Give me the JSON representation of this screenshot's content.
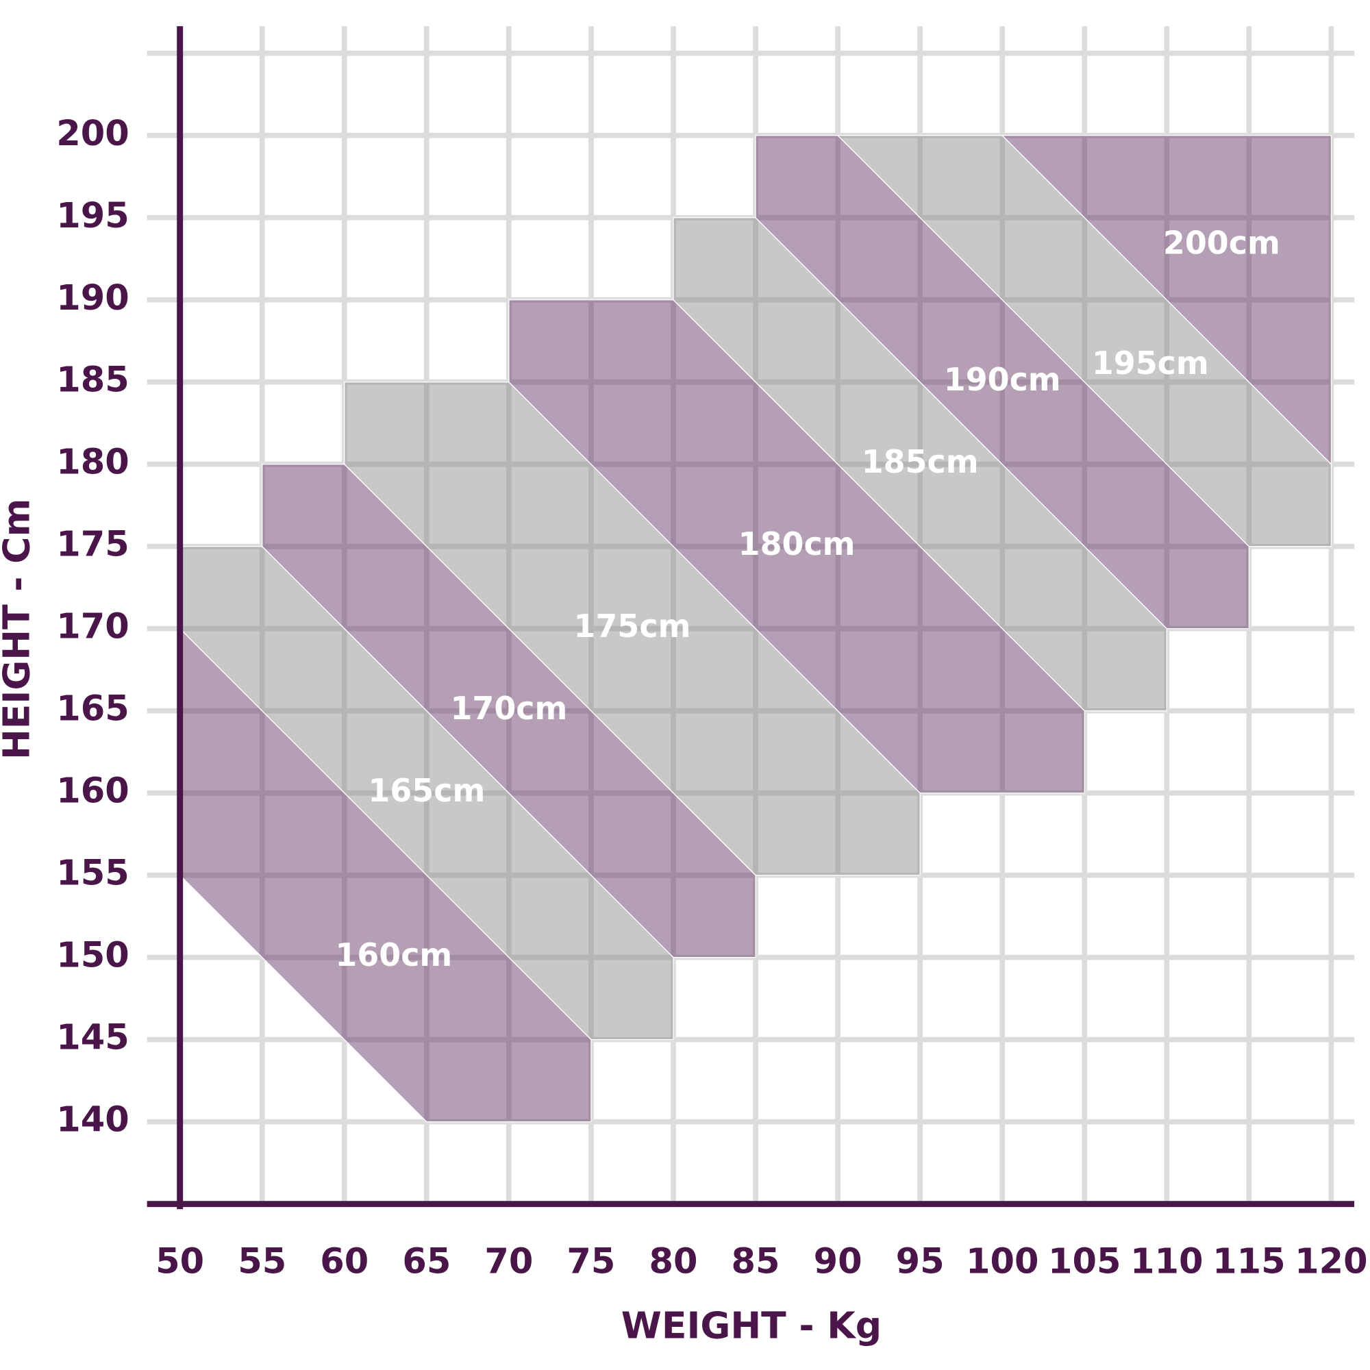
{
  "chart_data": {
    "type": "polygon",
    "x_label": "WEIGHT - Kg",
    "y_label": "HEIGHT - Cm",
    "xlim": [
      48,
      121.4
    ],
    "ylim": [
      135,
      205
    ],
    "xticks": [
      50,
      55,
      60,
      65,
      70,
      75,
      80,
      85,
      90,
      95,
      100,
      105,
      110,
      115,
      120
    ],
    "yticks": [
      140,
      145,
      150,
      155,
      160,
      165,
      170,
      175,
      180,
      185,
      190,
      195,
      200
    ],
    "grid": true,
    "bands": [
      {
        "name": "160cm",
        "color": "#5a2a58",
        "points": [
          [
            50,
            170
          ],
          [
            75,
            145
          ],
          [
            75,
            140
          ],
          [
            65,
            140
          ],
          [
            50,
            155
          ]
        ]
      },
      {
        "name": "165cm",
        "color": "#858585",
        "points": [
          [
            50,
            175
          ],
          [
            55,
            175
          ],
          [
            80,
            150
          ],
          [
            80,
            145
          ],
          [
            75,
            145
          ],
          [
            50,
            170
          ]
        ]
      },
      {
        "name": "170cm",
        "color": "#5a2a58",
        "points": [
          [
            55,
            180
          ],
          [
            60,
            180
          ],
          [
            85,
            155
          ],
          [
            85,
            150
          ],
          [
            80,
            150
          ],
          [
            55,
            175
          ]
        ]
      },
      {
        "name": "175cm",
        "color": "#858585",
        "points": [
          [
            60,
            185
          ],
          [
            70,
            185
          ],
          [
            95,
            160
          ],
          [
            95,
            155
          ],
          [
            85,
            155
          ],
          [
            60,
            180
          ]
        ]
      },
      {
        "name": "180cm",
        "color": "#5a2a58",
        "points": [
          [
            70,
            190
          ],
          [
            80,
            190
          ],
          [
            105,
            165
          ],
          [
            105,
            160
          ],
          [
            95,
            160
          ],
          [
            70,
            185
          ]
        ]
      },
      {
        "name": "185cm",
        "color": "#858585",
        "points": [
          [
            80,
            195
          ],
          [
            85,
            195
          ],
          [
            110,
            170
          ],
          [
            110,
            165
          ],
          [
            105,
            165
          ],
          [
            80,
            190
          ]
        ]
      },
      {
        "name": "190cm",
        "color": "#5a2a58",
        "points": [
          [
            85,
            200
          ],
          [
            90,
            200
          ],
          [
            115,
            175
          ],
          [
            115,
            170
          ],
          [
            110,
            170
          ],
          [
            85,
            195
          ]
        ]
      },
      {
        "name": "195cm",
        "color": "#858585",
        "points": [
          [
            90,
            200
          ],
          [
            100,
            200
          ],
          [
            120,
            180
          ],
          [
            120,
            175
          ],
          [
            115,
            175
          ]
        ]
      },
      {
        "name": "200cm",
        "color": "#5a2a58",
        "points": [
          [
            100,
            200
          ],
          [
            120,
            200
          ],
          [
            120,
            180
          ]
        ]
      }
    ]
  }
}
